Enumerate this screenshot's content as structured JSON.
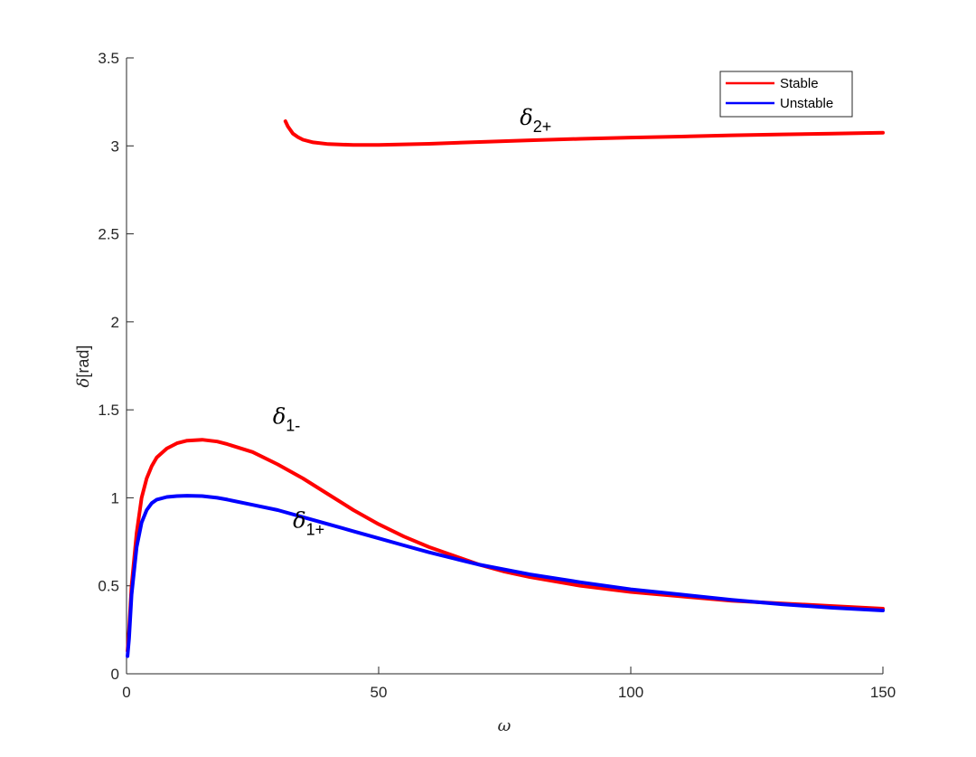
{
  "chart_data": {
    "type": "line",
    "xlabel": "ω",
    "ylabel_symbol": "δ",
    "ylabel_unit": "[rad]",
    "xlim": [
      0,
      150
    ],
    "ylim": [
      0,
      3.5
    ],
    "xticks": [
      0,
      50,
      100,
      150
    ],
    "yticks": [
      0,
      0.5,
      1,
      1.5,
      2,
      2.5,
      3,
      3.5
    ],
    "grid": false,
    "legend_position": "top-right",
    "legend": [
      {
        "label": "Stable",
        "color": "#ff0000"
      },
      {
        "label": "Unstable",
        "color": "#0000ff"
      }
    ],
    "series": [
      {
        "name": "Stable",
        "annotation": "δ1-",
        "color": "#ff0000",
        "x": [
          0.2,
          0.5,
          1,
          2,
          3,
          4,
          5,
          6,
          8,
          10,
          12,
          15,
          18,
          20,
          25,
          30,
          35,
          40,
          45,
          50,
          55,
          60,
          65,
          70,
          75,
          80,
          90,
          100,
          110,
          120,
          130,
          140,
          150
        ],
        "y": [
          0.13,
          0.25,
          0.5,
          0.8,
          1.0,
          1.11,
          1.18,
          1.23,
          1.28,
          1.31,
          1.325,
          1.33,
          1.32,
          1.305,
          1.26,
          1.19,
          1.11,
          1.02,
          0.93,
          0.85,
          0.78,
          0.72,
          0.67,
          0.62,
          0.58,
          0.55,
          0.5,
          0.465,
          0.44,
          0.415,
          0.4,
          0.385,
          0.37
        ]
      },
      {
        "name": "Stable",
        "annotation": "δ2+",
        "color": "#ff0000",
        "x": [
          31.5,
          32,
          33,
          34,
          35,
          37,
          40,
          45,
          50,
          60,
          70,
          80,
          90,
          100,
          110,
          120,
          130,
          140,
          150
        ],
        "y": [
          3.14,
          3.11,
          3.07,
          3.05,
          3.035,
          3.02,
          3.01,
          3.005,
          3.005,
          3.012,
          3.022,
          3.032,
          3.04,
          3.047,
          3.053,
          3.06,
          3.065,
          3.07,
          3.075
        ]
      },
      {
        "name": "Unstable",
        "annotation": "δ1+",
        "color": "#0000ff",
        "x": [
          0.2,
          0.5,
          1,
          2,
          3,
          4,
          5,
          6,
          8,
          10,
          12,
          15,
          18,
          20,
          25,
          30,
          35,
          40,
          45,
          50,
          55,
          60,
          65,
          70,
          80,
          90,
          100,
          110,
          120,
          130,
          140,
          150
        ],
        "y": [
          0.1,
          0.2,
          0.45,
          0.72,
          0.86,
          0.93,
          0.97,
          0.99,
          1.005,
          1.01,
          1.012,
          1.01,
          1.0,
          0.99,
          0.96,
          0.93,
          0.89,
          0.85,
          0.81,
          0.77,
          0.73,
          0.69,
          0.655,
          0.62,
          0.565,
          0.52,
          0.48,
          0.45,
          0.42,
          0.395,
          0.375,
          0.36
        ]
      }
    ],
    "annotations": [
      {
        "symbol": "δ",
        "sub": "1-",
        "x": 29,
        "y": 1.42
      },
      {
        "symbol": "δ",
        "sub": "1+",
        "x": 33,
        "y": 0.83
      },
      {
        "symbol": "δ",
        "sub": "2+",
        "x": 78,
        "y": 3.12
      }
    ]
  }
}
